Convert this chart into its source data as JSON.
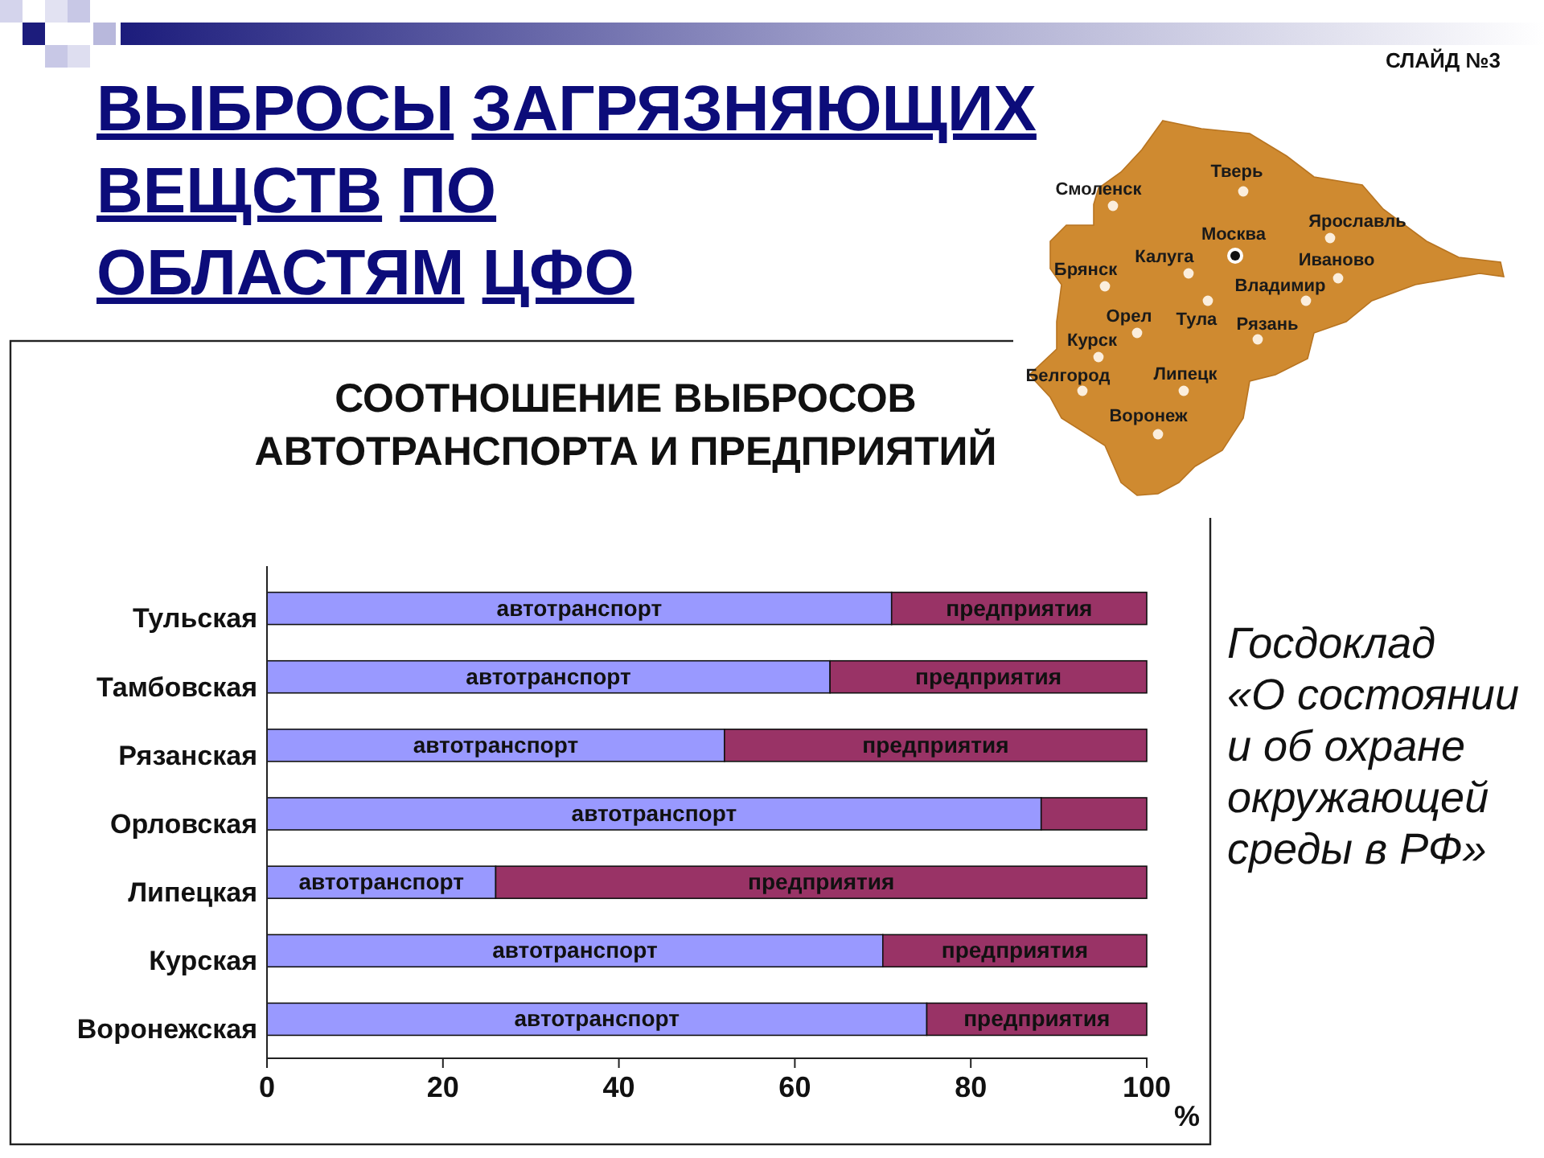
{
  "chart_data": {
    "type": "bar",
    "orientation": "horizontal",
    "stacked": true,
    "title": "ВЫБРОСЫ ЗАГРЯЗНЯЮЩИХ\nВЕЩСТВ ПО\nОБЛАСТЯМ ЦФО",
    "subtitle": "СООТНОШЕНИЕ ВЫБРОСОВ\nАВТОТРАНСПОРТА И ПРЕДПРИЯТИЙ",
    "xlabel": "%",
    "categories": [
      "Тульская",
      "Тамбовская",
      "Рязанская",
      "Орловская",
      "Липецкая",
      "Курская",
      "Воронежская"
    ],
    "series": [
      {
        "name": "автотранспорт",
        "color": "#9999ff",
        "values": [
          71,
          64,
          52,
          88,
          26,
          70,
          75
        ]
      },
      {
        "name": "предприятия",
        "color": "#993366",
        "values": [
          29,
          36,
          48,
          12,
          74,
          30,
          25
        ]
      }
    ],
    "xlim": [
      0,
      100
    ],
    "xticks": [
      0,
      20,
      40,
      60,
      80,
      100
    ],
    "annotations": [
      "СЛАЙД №3",
      "Госдоклад\n«О состоянии\nи об охране\nокружающей\nсреды в РФ»",
      "Тверь",
      "Смоленск",
      "Москва",
      "Ярославль",
      "Калуга",
      "Брянск",
      "Иваново",
      "Владимир",
      "Орел",
      "Тула",
      "Рязань",
      "Курск",
      "Белгород",
      "Липецк",
      "Воронеж"
    ]
  }
}
